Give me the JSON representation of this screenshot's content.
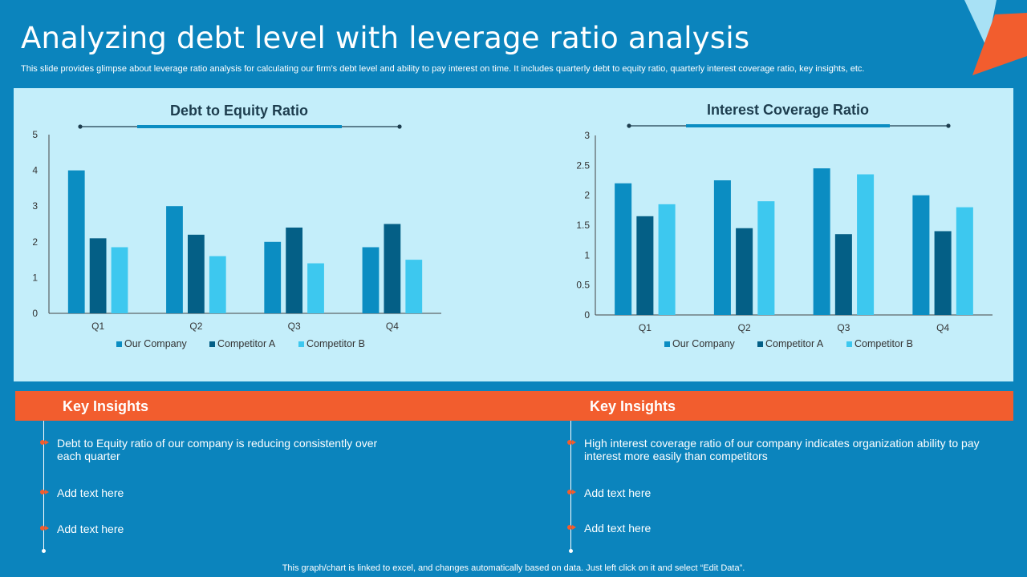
{
  "header": {
    "title": "Analyzing debt level with leverage ratio analysis",
    "subtitle": "This slide provides glimpse about leverage ratio analysis for calculating our firm’s debt level and ability to pay interest on time. It includes quarterly debt to equity ratio, quarterly interest coverage ratio, key insights, etc."
  },
  "colors": {
    "background": "#0b84bd",
    "panel": "#c4eefa",
    "accent": "#f25d2e",
    "our_company": "#0b8dc2",
    "competitor_a": "#045f86",
    "competitor_b": "#3dc8ef"
  },
  "chart_data": [
    {
      "type": "bar",
      "title": "Debt to Equity Ratio",
      "categories": [
        "Q1",
        "Q2",
        "Q3",
        "Q4"
      ],
      "series": [
        {
          "name": "Our Company",
          "values": [
            4.0,
            3.0,
            2.0,
            1.85
          ]
        },
        {
          "name": "Competitor A",
          "values": [
            2.1,
            2.2,
            2.4,
            2.5
          ]
        },
        {
          "name": "Competitor B",
          "values": [
            1.85,
            1.6,
            1.4,
            1.5
          ]
        }
      ],
      "yticks": [
        "0",
        "1",
        "2",
        "3",
        "4",
        "5"
      ],
      "ylim": [
        0,
        5
      ],
      "xlabel": "",
      "ylabel": "",
      "legend": "bottom",
      "grid": false
    },
    {
      "type": "bar",
      "title": "Interest Coverage Ratio",
      "categories": [
        "Q1",
        "Q2",
        "Q3",
        "Q4"
      ],
      "series": [
        {
          "name": "Our Company",
          "values": [
            2.2,
            2.25,
            2.45,
            2.0
          ]
        },
        {
          "name": "Competitor A",
          "values": [
            1.65,
            1.45,
            1.35,
            1.4
          ]
        },
        {
          "name": "Competitor B",
          "values": [
            1.85,
            1.9,
            2.35,
            1.8
          ]
        }
      ],
      "yticks": [
        "0",
        "0.5",
        "1",
        "1.5",
        "2",
        "2.5",
        "3"
      ],
      "ylim": [
        0,
        3
      ],
      "xlabel": "",
      "ylabel": "",
      "legend": "bottom",
      "grid": false
    }
  ],
  "insights": [
    {
      "heading": "Key Insights",
      "points": [
        "Debt to Equity ratio of our company is reducing consistently over each quarter",
        "Add text here",
        "Add text here"
      ]
    },
    {
      "heading": "Key Insights",
      "points": [
        "High interest coverage ratio of our company indicates organization ability to pay interest more easily than competitors",
        "Add text here",
        "Add text here"
      ]
    }
  ],
  "footer": {
    "note": "This graph/chart is linked to excel, and changes automatically based on data. Just left click on it and select “Edit Data”."
  }
}
